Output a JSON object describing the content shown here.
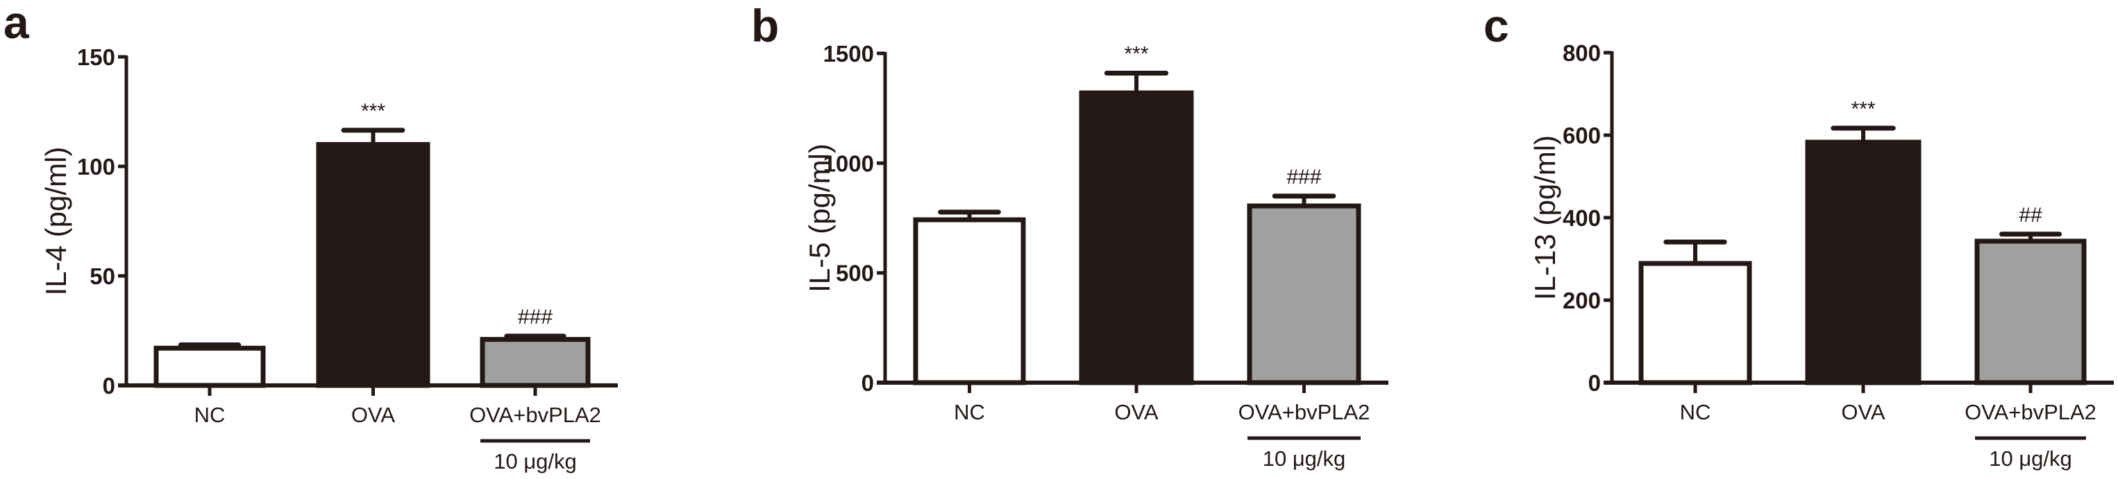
{
  "figure": {
    "panels": [
      "a",
      "b",
      "c"
    ]
  },
  "colors": {
    "axis": "#231815",
    "NC": "#ffffff",
    "OVA": "#231815",
    "OVA+bvPLA2": "#a0a0a0"
  },
  "chart_data": [
    {
      "panel": "a",
      "type": "bar",
      "title": "",
      "xlabel": "",
      "ylabel": "IL-4 (pg/ml)",
      "categories": [
        "NC",
        "OVA",
        "OVA+bvPLA2"
      ],
      "values": [
        17,
        110,
        21
      ],
      "error_sem": [
        1.5,
        6.5,
        1.5
      ],
      "annotations": [
        "",
        "***",
        "###"
      ],
      "dose_label": "10 μg/kg",
      "dose_applies_to": "OVA+bvPLA2",
      "ylim": [
        0,
        150
      ],
      "yticks": [
        0,
        50,
        100,
        150
      ],
      "grid": false,
      "legend": null
    },
    {
      "panel": "b",
      "type": "bar",
      "title": "",
      "xlabel": "",
      "ylabel": "IL-5 (pg/ml)",
      "categories": [
        "NC",
        "OVA",
        "OVA+bvPLA2"
      ],
      "values": [
        742,
        1320,
        805
      ],
      "error_sem": [
        35,
        90,
        45
      ],
      "annotations": [
        "",
        "***",
        "###"
      ],
      "dose_label": "10 μg/kg",
      "dose_applies_to": "OVA+bvPLA2",
      "ylim": [
        0,
        1500
      ],
      "yticks": [
        0,
        500,
        1000,
        1500
      ],
      "grid": false,
      "legend": null
    },
    {
      "panel": "c",
      "type": "bar",
      "title": "",
      "xlabel": "",
      "ylabel": "IL-13 (pg/ml)",
      "categories": [
        "NC",
        "OVA",
        "OVA+bvPLA2"
      ],
      "values": [
        289,
        583,
        343
      ],
      "error_sem": [
        52,
        34,
        17
      ],
      "annotations": [
        "",
        "***",
        "##"
      ],
      "dose_label": "10 μg/kg",
      "dose_applies_to": "OVA+bvPLA2",
      "ylim": [
        0,
        800
      ],
      "yticks": [
        0,
        200,
        400,
        600,
        800
      ],
      "grid": false,
      "legend": null
    }
  ]
}
